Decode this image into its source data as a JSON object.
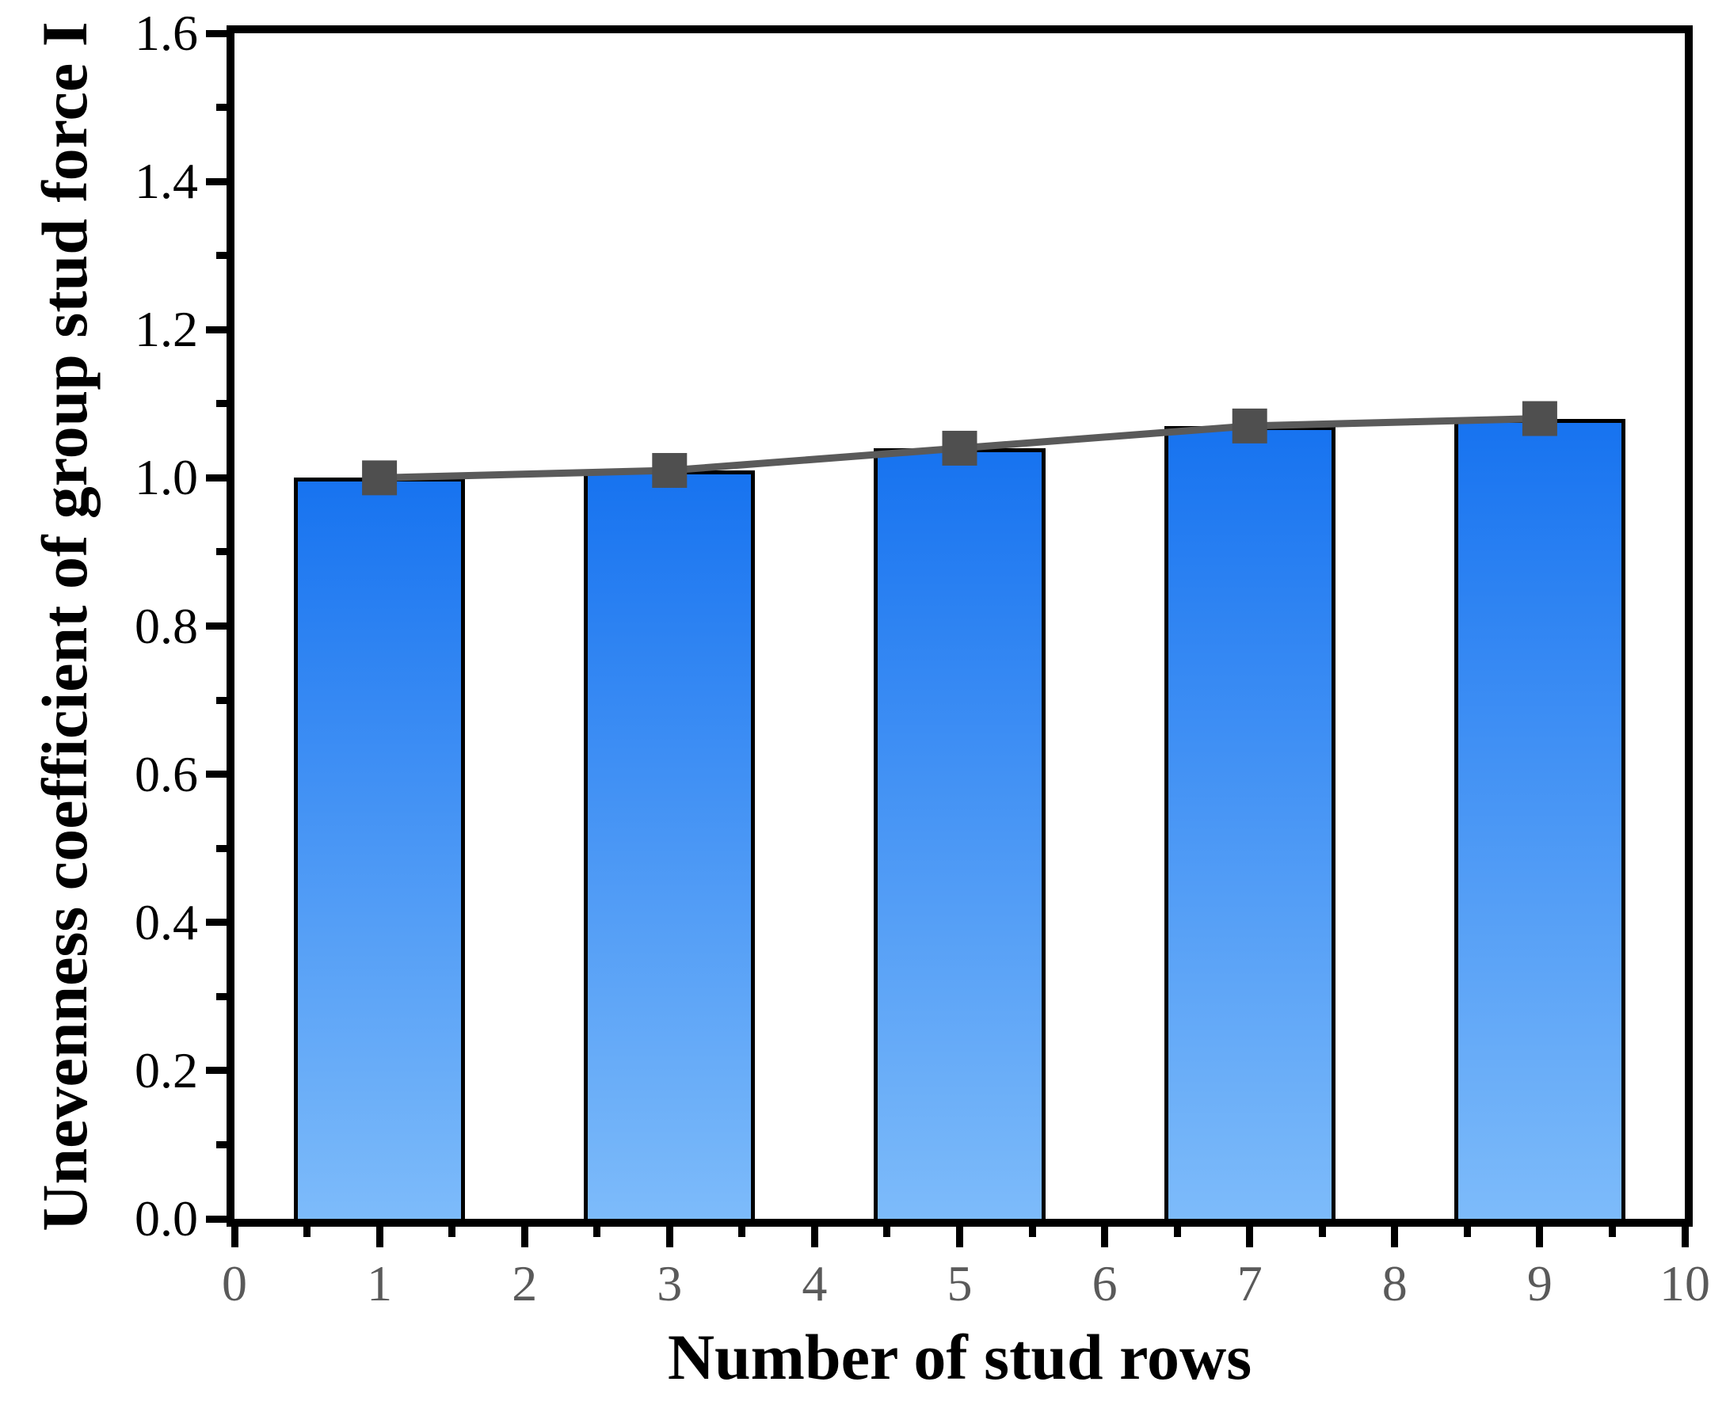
{
  "chart_data": {
    "type": "bar",
    "title": "",
    "xlabel": "Number of stud rows",
    "ylabel": "Unevenness coefficient of group stud force I",
    "x": [
      1,
      3,
      5,
      7,
      9
    ],
    "values": [
      1.0,
      1.01,
      1.04,
      1.07,
      1.08
    ],
    "bar_width": 1.18,
    "line_overlay": {
      "type": "line",
      "x": [
        1,
        3,
        5,
        7,
        9
      ],
      "y": [
        1.0,
        1.01,
        1.04,
        1.07,
        1.08
      ],
      "marker": "square",
      "marker_size": 44,
      "line_width": 9
    },
    "xlim": [
      0,
      10
    ],
    "ylim": [
      0,
      1.6
    ],
    "x_tick_labels": [
      "0",
      "1",
      "2",
      "3",
      "4",
      "5",
      "6",
      "7",
      "8",
      "9",
      "10"
    ],
    "y_tick_labels": [
      "0.0",
      "0.2",
      "0.4",
      "0.6",
      "0.8",
      "1.0",
      "1.2",
      "1.4",
      "1.6"
    ],
    "x_minor_step": 0.5,
    "y_minor_step": 0.1,
    "grid": false,
    "legend": null,
    "frame": "full-box",
    "colors": {
      "bar_gradient_top": "#1773F0",
      "bar_gradient_bottom": "#7DBBFA",
      "bar_border": "#000000",
      "line": "#5A5A5A",
      "marker": "#4F4F4F",
      "axis": "#000000",
      "x_tick_label": "#5A5A5A",
      "y_tick_label": "#000000"
    }
  }
}
